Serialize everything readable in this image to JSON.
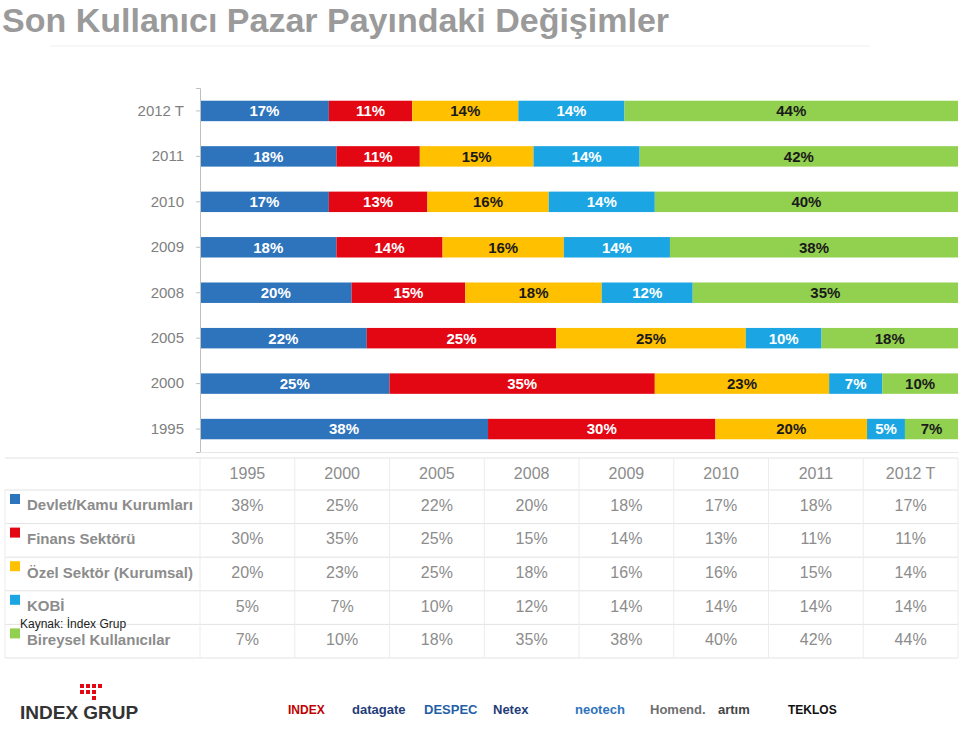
{
  "chart_data": {
    "type": "bar",
    "title": "Son Kullanıcı Pazar Payındaki Değişimler",
    "orientation": "horizontal",
    "stacked": true,
    "data_labels": true,
    "tick_labels": "y",
    "categories": [
      "1995",
      "2000",
      "2005",
      "2008",
      "2009",
      "2010",
      "2011",
      "2012 T"
    ],
    "xlim": [
      0,
      100
    ],
    "annotations": [
      "Kaynak: İndex Grup"
    ],
    "series": [
      {
        "name": "Devlet/Kamu Kurumları",
        "color": "#2e74bd",
        "values": [
          38,
          25,
          22,
          20,
          18,
          17,
          18,
          17
        ],
        "value_labels": [
          "38%",
          "25%",
          "22%",
          "20%",
          "18%",
          "17%",
          "18%",
          "17%"
        ]
      },
      {
        "name": "Finans Sektörü",
        "color": "#e30613",
        "values": [
          30,
          35,
          25,
          15,
          14,
          13,
          11,
          11
        ],
        "value_labels": [
          "30%",
          "35%",
          "25%",
          "15%",
          "14%",
          "13%",
          "11%",
          "11%"
        ]
      },
      {
        "name": "Özel Sektör (Kurumsal)",
        "color": "#ffc000",
        "values": [
          20,
          23,
          25,
          18,
          16,
          16,
          15,
          14
        ],
        "value_labels": [
          "20%",
          "23%",
          "25%",
          "18%",
          "16%",
          "16%",
          "15%",
          "14%"
        ]
      },
      {
        "name": "KOBİ",
        "color": "#1ba6e3",
        "values": [
          5,
          7,
          10,
          12,
          14,
          14,
          14,
          14
        ],
        "value_labels": [
          "5%",
          "7%",
          "10%",
          "12%",
          "14%",
          "14%",
          "14%",
          "14%"
        ]
      },
      {
        "name": "Bireysel Kullanıcılar",
        "color": "#92d050",
        "values": [
          7,
          10,
          18,
          35,
          38,
          40,
          42,
          44
        ],
        "value_labels": [
          "7%",
          "10%",
          "18%",
          "35%",
          "38%",
          "40%",
          "42%",
          "44%"
        ]
      }
    ]
  },
  "footer": {
    "logo": "INDEX GRUP",
    "partners": [
      "INDEX",
      "datagate",
      "DESPEC",
      "Netex",
      "neotech",
      "Homend.",
      "artım",
      "TEKLOS"
    ]
  }
}
